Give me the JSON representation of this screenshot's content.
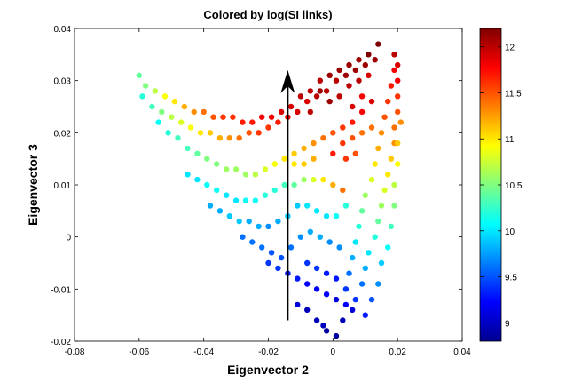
{
  "chart_data": {
    "type": "scatter",
    "title": "Colored by log(SI links)",
    "xlabel": "Eigenvector 2",
    "ylabel": "Eigenvector 3",
    "xlim": [
      -0.08,
      0.04
    ],
    "ylim": [
      -0.02,
      0.04
    ],
    "xticks": [
      -0.08,
      -0.06,
      -0.04,
      -0.02,
      0,
      0.02,
      0.04
    ],
    "xtick_labels": [
      "-0.08",
      "-0.06",
      "-0.04",
      "-0.02",
      "0",
      "0.02",
      "0.04"
    ],
    "yticks": [
      -0.02,
      -0.01,
      0,
      0.01,
      0.02,
      0.03,
      0.04
    ],
    "ytick_labels": [
      "-0.02",
      "-0.01",
      "0",
      "0.01",
      "0.02",
      "0.03",
      "0.04"
    ],
    "grid": false,
    "colormap": "jet",
    "colorbar": {
      "range": [
        8.8,
        12.2
      ],
      "ticks": [
        9,
        9.5,
        10,
        10.5,
        11,
        11.5,
        12
      ],
      "tick_labels": [
        "9",
        "9.5",
        "10",
        "10.5",
        "11",
        "11.5",
        "12"
      ]
    },
    "arrow": {
      "x": -0.014,
      "y_start": -0.016,
      "y_end": 0.032,
      "color": "#000000"
    },
    "series": [
      {
        "values": [
          [
            -0.06,
            0.031,
            10.4
          ],
          [
            -0.058,
            0.029,
            10.5
          ],
          [
            -0.055,
            0.028,
            10.7
          ],
          [
            -0.052,
            0.027,
            10.9
          ],
          [
            -0.049,
            0.026,
            11.0
          ],
          [
            -0.046,
            0.025,
            11.2
          ],
          [
            -0.043,
            0.024,
            11.3
          ],
          [
            -0.04,
            0.024,
            11.4
          ],
          [
            -0.037,
            0.023,
            11.5
          ],
          [
            -0.034,
            0.023,
            11.6
          ],
          [
            -0.031,
            0.023,
            11.6
          ],
          [
            -0.028,
            0.022,
            11.7
          ],
          [
            -0.025,
            0.022,
            11.7
          ],
          [
            -0.022,
            0.023,
            11.8
          ],
          [
            -0.019,
            0.023,
            11.8
          ],
          [
            -0.016,
            0.024,
            11.9
          ],
          [
            -0.013,
            0.025,
            11.9
          ],
          [
            -0.01,
            0.027,
            12.0
          ],
          [
            -0.007,
            0.028,
            12.0
          ],
          [
            -0.004,
            0.03,
            12.0
          ],
          [
            -0.001,
            0.031,
            12.1
          ],
          [
            0.002,
            0.032,
            12.1
          ],
          [
            0.005,
            0.033,
            12.1
          ],
          [
            0.008,
            0.034,
            12.1
          ],
          [
            0.011,
            0.035,
            12.2
          ],
          [
            0.014,
            0.037,
            12.2
          ],
          [
            -0.059,
            0.027,
            10.2
          ],
          [
            -0.056,
            0.025,
            10.3
          ],
          [
            -0.053,
            0.024,
            10.5
          ],
          [
            -0.05,
            0.023,
            10.7
          ],
          [
            -0.047,
            0.022,
            10.8
          ],
          [
            -0.044,
            0.021,
            10.9
          ],
          [
            -0.041,
            0.02,
            11.0
          ],
          [
            -0.038,
            0.02,
            11.1
          ],
          [
            -0.035,
            0.019,
            11.2
          ],
          [
            -0.032,
            0.019,
            11.3
          ],
          [
            -0.029,
            0.019,
            11.4
          ],
          [
            -0.026,
            0.02,
            11.5
          ],
          [
            -0.023,
            0.02,
            11.6
          ],
          [
            -0.02,
            0.021,
            11.6
          ],
          [
            -0.017,
            0.022,
            11.7
          ],
          [
            -0.014,
            0.023,
            11.8
          ],
          [
            -0.011,
            0.024,
            11.9
          ],
          [
            -0.008,
            0.026,
            11.9
          ],
          [
            -0.005,
            0.027,
            12.0
          ],
          [
            -0.002,
            0.028,
            12.0
          ],
          [
            0.001,
            0.03,
            12.0
          ],
          [
            0.004,
            0.031,
            12.1
          ],
          [
            0.007,
            0.032,
            12.1
          ],
          [
            0.01,
            0.033,
            12.1
          ],
          [
            0.013,
            0.034,
            12.1
          ],
          [
            -0.054,
            0.022,
            10.1
          ],
          [
            -0.051,
            0.02,
            10.2
          ],
          [
            -0.048,
            0.019,
            10.3
          ],
          [
            -0.045,
            0.017,
            10.3
          ],
          [
            -0.042,
            0.016,
            10.4
          ],
          [
            -0.039,
            0.015,
            10.5
          ],
          [
            -0.036,
            0.014,
            10.5
          ],
          [
            -0.033,
            0.013,
            10.6
          ],
          [
            -0.03,
            0.013,
            10.6
          ],
          [
            -0.027,
            0.012,
            10.6
          ],
          [
            -0.024,
            0.012,
            10.7
          ],
          [
            -0.021,
            0.013,
            10.8
          ],
          [
            -0.018,
            0.014,
            10.9
          ],
          [
            -0.015,
            0.015,
            11.0
          ],
          [
            -0.012,
            0.016,
            11.1
          ],
          [
            -0.009,
            0.017,
            11.2
          ],
          [
            -0.006,
            0.018,
            11.3
          ],
          [
            -0.003,
            0.019,
            11.4
          ],
          [
            0.0,
            0.02,
            11.5
          ],
          [
            0.003,
            0.021,
            11.6
          ],
          [
            0.006,
            0.022,
            11.7
          ],
          [
            0.009,
            0.024,
            11.8
          ],
          [
            0.012,
            0.026,
            11.9
          ],
          [
            -0.045,
            0.012,
            10.0
          ],
          [
            -0.042,
            0.011,
            10.0
          ],
          [
            -0.039,
            0.01,
            10.1
          ],
          [
            -0.036,
            0.009,
            10.1
          ],
          [
            -0.033,
            0.008,
            10.0
          ],
          [
            -0.03,
            0.007,
            10.0
          ],
          [
            -0.027,
            0.007,
            10.1
          ],
          [
            -0.024,
            0.007,
            10.1
          ],
          [
            -0.021,
            0.008,
            10.2
          ],
          [
            -0.018,
            0.009,
            10.2
          ],
          [
            -0.015,
            0.01,
            10.3
          ],
          [
            -0.012,
            0.01,
            10.4
          ],
          [
            -0.009,
            0.011,
            10.6
          ],
          [
            -0.006,
            0.011,
            10.8
          ],
          [
            -0.003,
            0.011,
            11.0
          ],
          [
            0.0,
            0.01,
            11.2
          ],
          [
            0.003,
            0.009,
            11.4
          ],
          [
            -0.012,
            0.014,
            11.0
          ],
          [
            -0.009,
            0.014,
            11.1
          ],
          [
            -0.006,
            0.015,
            11.2
          ],
          [
            -0.038,
            0.006,
            9.8
          ],
          [
            -0.035,
            0.005,
            9.8
          ],
          [
            -0.032,
            0.004,
            9.9
          ],
          [
            -0.029,
            0.003,
            9.9
          ],
          [
            -0.026,
            0.003,
            9.8
          ],
          [
            -0.023,
            0.002,
            9.8
          ],
          [
            -0.02,
            0.002,
            9.7
          ],
          [
            -0.017,
            0.003,
            9.8
          ],
          [
            -0.014,
            0.004,
            9.9
          ],
          [
            -0.011,
            0.006,
            9.9
          ],
          [
            -0.008,
            0.006,
            10.0
          ],
          [
            -0.005,
            0.005,
            10.0
          ],
          [
            -0.002,
            0.004,
            10.0
          ],
          [
            0.001,
            0.004,
            10.1
          ],
          [
            0.004,
            0.006,
            10.2
          ],
          [
            -0.028,
            0.0,
            9.6
          ],
          [
            -0.025,
            -0.001,
            9.6
          ],
          [
            -0.022,
            -0.002,
            9.6
          ],
          [
            -0.019,
            -0.003,
            9.5
          ],
          [
            -0.016,
            -0.004,
            9.5
          ],
          [
            -0.013,
            -0.002,
            9.6
          ],
          [
            -0.01,
            0.0,
            9.7
          ],
          [
            -0.007,
            0.001,
            9.8
          ],
          [
            -0.004,
            0.0,
            9.8
          ],
          [
            -0.001,
            -0.001,
            9.7
          ],
          [
            0.002,
            -0.002,
            9.7
          ],
          [
            -0.02,
            -0.005,
            9.4
          ],
          [
            -0.017,
            -0.006,
            9.4
          ],
          [
            -0.014,
            -0.007,
            9.3
          ],
          [
            -0.011,
            -0.008,
            9.3
          ],
          [
            -0.008,
            -0.009,
            9.2
          ],
          [
            -0.005,
            -0.01,
            9.2
          ],
          [
            -0.002,
            -0.011,
            9.2
          ],
          [
            0.001,
            -0.012,
            9.1
          ],
          [
            0.004,
            -0.013,
            9.2
          ],
          [
            -0.008,
            -0.005,
            9.4
          ],
          [
            -0.005,
            -0.006,
            9.4
          ],
          [
            -0.002,
            -0.007,
            9.3
          ],
          [
            0.001,
            -0.008,
            9.3
          ],
          [
            -0.011,
            -0.013,
            9.1
          ],
          [
            -0.008,
            -0.014,
            9.0
          ],
          [
            -0.005,
            -0.016,
            9.0
          ],
          [
            -0.002,
            -0.018,
            8.9
          ],
          [
            0.001,
            -0.019,
            8.9
          ],
          [
            -0.003,
            -0.017,
            9.0
          ],
          [
            0.003,
            -0.016,
            9.0
          ],
          [
            0.006,
            -0.014,
            9.1
          ],
          [
            0.004,
            -0.01,
            9.4
          ],
          [
            0.005,
            -0.007,
            9.6
          ],
          [
            0.006,
            -0.004,
            9.8
          ],
          [
            0.007,
            -0.001,
            10.0
          ],
          [
            0.008,
            0.002,
            10.2
          ],
          [
            0.009,
            0.005,
            10.4
          ],
          [
            0.01,
            0.008,
            10.6
          ],
          [
            0.012,
            0.011,
            10.8
          ],
          [
            0.013,
            0.014,
            11.0
          ],
          [
            0.014,
            0.017,
            11.2
          ],
          [
            0.015,
            0.02,
            11.3
          ],
          [
            0.016,
            0.023,
            11.5
          ],
          [
            0.017,
            0.026,
            11.6
          ],
          [
            0.018,
            0.029,
            11.7
          ],
          [
            0.019,
            0.032,
            11.8
          ],
          [
            0.019,
            0.035,
            12.0
          ],
          [
            0.007,
            -0.012,
            9.4
          ],
          [
            0.009,
            -0.009,
            9.6
          ],
          [
            0.01,
            -0.006,
            9.8
          ],
          [
            0.011,
            -0.003,
            10.0
          ],
          [
            0.013,
            0.0,
            10.2
          ],
          [
            0.014,
            0.003,
            10.4
          ],
          [
            0.015,
            0.006,
            10.6
          ],
          [
            0.016,
            0.009,
            10.8
          ],
          [
            0.017,
            0.012,
            11.0
          ],
          [
            0.018,
            0.015,
            11.1
          ],
          [
            0.019,
            0.018,
            11.3
          ],
          [
            0.019,
            0.021,
            11.4
          ],
          [
            0.02,
            0.024,
            11.5
          ],
          [
            0.02,
            0.027,
            11.6
          ],
          [
            0.02,
            0.03,
            11.8
          ],
          [
            0.02,
            0.033,
            11.9
          ],
          [
            0.01,
            -0.015,
            9.3
          ],
          [
            0.012,
            -0.012,
            9.5
          ],
          [
            0.014,
            -0.009,
            9.7
          ],
          [
            0.015,
            -0.005,
            9.9
          ],
          [
            0.017,
            -0.002,
            10.1
          ],
          [
            0.018,
            0.002,
            10.3
          ],
          [
            0.019,
            0.006,
            10.5
          ],
          [
            0.019,
            0.01,
            10.7
          ],
          [
            0.02,
            0.014,
            10.9
          ],
          [
            0.02,
            0.018,
            11.1
          ],
          [
            0.021,
            0.022,
            11.3
          ],
          [
            0.003,
            0.018,
            11.6
          ],
          [
            0.006,
            0.019,
            11.5
          ],
          [
            0.009,
            0.02,
            11.4
          ],
          [
            0.012,
            0.021,
            11.4
          ],
          [
            0.0,
            0.016,
            11.7
          ],
          [
            0.004,
            0.015,
            11.6
          ],
          [
            0.007,
            0.016,
            11.5
          ],
          [
            -0.004,
            0.028,
            12.1
          ],
          [
            -0.001,
            0.026,
            12.1
          ],
          [
            0.002,
            0.027,
            12.0
          ],
          [
            0.005,
            0.029,
            12.0
          ],
          [
            0.008,
            0.03,
            12.0
          ],
          [
            0.011,
            0.031,
            11.9
          ],
          [
            -0.007,
            0.024,
            12.0
          ],
          [
            0.006,
            0.025,
            11.9
          ],
          [
            0.009,
            0.027,
            11.8
          ]
        ]
      }
    ]
  }
}
